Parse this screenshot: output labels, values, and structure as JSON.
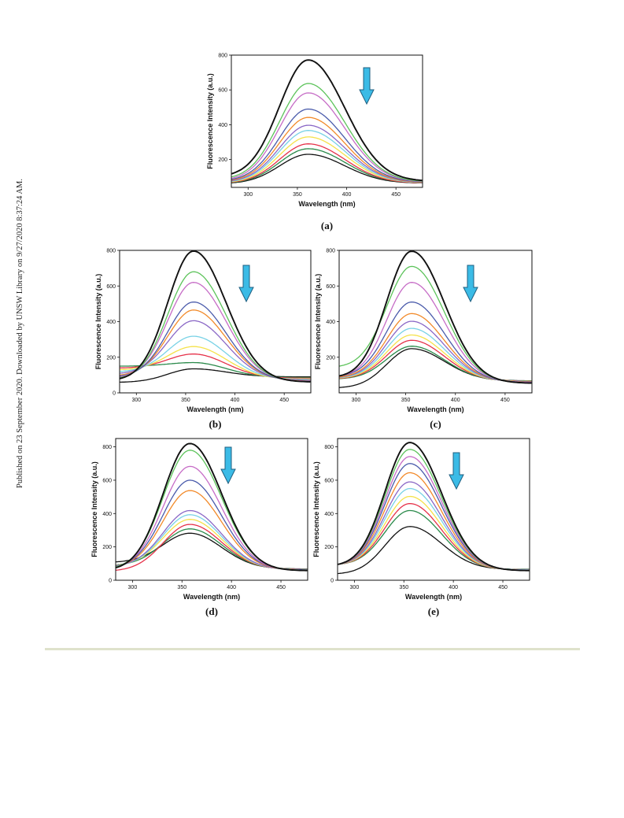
{
  "side_note": "Published on 23 September 2020. Downloaded by UNSW Library on 9/27/2020 8:37:24 AM.",
  "colors": {
    "arrow": "#3bbbe6",
    "series": [
      "#111111",
      "#5cc35a",
      "#c66cc6",
      "#4a5bab",
      "#f28a2a",
      "#8a67c6",
      "#78d2e6",
      "#f5e24a",
      "#e6324a",
      "#2a8a4a"
    ]
  },
  "chart_data": [
    {
      "type": "line",
      "panel": "(a)",
      "xlabel": "Wavelength (nm)",
      "ylabel": "Fluorescence Intensity (a.u.)",
      "xlim": [
        283,
        477
      ],
      "ylim": [
        40,
        800
      ],
      "xticks": [
        300,
        350,
        400,
        450
      ],
      "yticks": [
        200,
        400,
        600,
        800
      ],
      "peak_x": 361,
      "sigma_left": 29,
      "sigma_right": 37,
      "start_x": 283,
      "end_x": 477,
      "series": [
        {
          "values": {
            "start": 118,
            "peak": 772,
            "end": 80
          }
        },
        {
          "values": {
            "start": 100,
            "peak": 637,
            "end": 76
          }
        },
        {
          "values": {
            "start": 92,
            "peak": 583,
            "end": 74
          }
        },
        {
          "values": {
            "start": 86,
            "peak": 490,
            "end": 72
          }
        },
        {
          "values": {
            "start": 82,
            "peak": 442,
            "end": 70
          }
        },
        {
          "values": {
            "start": 78,
            "peak": 397,
            "end": 70
          }
        },
        {
          "values": {
            "start": 75,
            "peak": 367,
            "end": 68
          }
        },
        {
          "values": {
            "start": 72,
            "peak": 330,
            "end": 68
          }
        },
        {
          "values": {
            "start": 70,
            "peak": 290,
            "end": 66
          }
        },
        {
          "values": {
            "start": 68,
            "peak": 262,
            "end": 66
          }
        },
        {
          "values": {
            "start": 66,
            "peak": 230,
            "end": 65
          }
        }
      ]
    },
    {
      "type": "line",
      "panel": "(b)",
      "xlabel": "Wavelength (nm)",
      "ylabel": "Fluorescence Intensity (a.u.)",
      "xlim": [
        283,
        477
      ],
      "ylim": [
        0,
        800
      ],
      "xticks": [
        300,
        350,
        400,
        450
      ],
      "yticks": [
        0,
        200,
        400,
        600,
        800
      ],
      "peak_x": 358,
      "sigma_left": 26,
      "sigma_right": 33,
      "start_x": 283,
      "end_x": 477,
      "series": [
        {
          "values": {
            "start": 80,
            "peak": 796,
            "end": 62
          }
        },
        {
          "values": {
            "start": 85,
            "peak": 680,
            "end": 64
          }
        },
        {
          "values": {
            "start": 90,
            "peak": 620,
            "end": 66
          }
        },
        {
          "values": {
            "start": 95,
            "peak": 510,
            "end": 68
          }
        },
        {
          "values": {
            "start": 100,
            "peak": 465,
            "end": 70
          }
        },
        {
          "values": {
            "start": 110,
            "peak": 405,
            "end": 72
          }
        },
        {
          "values": {
            "start": 120,
            "peak": 318,
            "end": 76
          }
        },
        {
          "values": {
            "start": 130,
            "peak": 260,
            "end": 78
          }
        },
        {
          "values": {
            "start": 140,
            "peak": 218,
            "end": 82
          }
        },
        {
          "values": {
            "start": 150,
            "peak": 170,
            "end": 86
          }
        },
        {
          "values": {
            "start": 60,
            "peak": 135,
            "end": 90
          }
        }
      ]
    },
    {
      "type": "line",
      "panel": "(c)",
      "xlabel": "Wavelength (nm)",
      "ylabel": "Fluorescence Intensity (a.u.)",
      "xlim": [
        283,
        477
      ],
      "ylim": [
        0,
        800
      ],
      "xticks": [
        300,
        350,
        400,
        450
      ],
      "yticks": [
        200,
        400,
        600,
        800
      ],
      "peak_x": 356,
      "sigma_left": 25,
      "sigma_right": 33,
      "start_x": 283,
      "end_x": 477,
      "series": [
        {
          "values": {
            "start": 95,
            "peak": 795,
            "end": 55
          }
        },
        {
          "values": {
            "start": 150,
            "peak": 710,
            "end": 56
          }
        },
        {
          "values": {
            "start": 95,
            "peak": 620,
            "end": 58
          }
        },
        {
          "values": {
            "start": 95,
            "peak": 510,
            "end": 60
          }
        },
        {
          "values": {
            "start": 90,
            "peak": 445,
            "end": 62
          }
        },
        {
          "values": {
            "start": 88,
            "peak": 402,
            "end": 63
          }
        },
        {
          "values": {
            "start": 86,
            "peak": 362,
            "end": 64
          }
        },
        {
          "values": {
            "start": 84,
            "peak": 325,
            "end": 65
          }
        },
        {
          "values": {
            "start": 82,
            "peak": 295,
            "end": 66
          }
        },
        {
          "values": {
            "start": 80,
            "peak": 262,
            "end": 67
          }
        },
        {
          "values": {
            "start": 30,
            "peak": 248,
            "end": 68
          }
        }
      ]
    },
    {
      "type": "line",
      "panel": "(d)",
      "xlabel": "Wavelength (nm)",
      "ylabel": "Fluorescence Intensity (a.u.)",
      "xlim": [
        283,
        477
      ],
      "ylim": [
        0,
        850
      ],
      "xticks": [
        300,
        350,
        400,
        450
      ],
      "yticks": [
        0,
        200,
        400,
        600,
        800
      ],
      "peak_x": 358,
      "sigma_left": 27,
      "sigma_right": 32,
      "start_x": 283,
      "end_x": 477,
      "series": [
        {
          "values": {
            "start": 75,
            "peak": 820,
            "end": 58
          }
        },
        {
          "values": {
            "start": 80,
            "peak": 780,
            "end": 60
          }
        },
        {
          "values": {
            "start": 82,
            "peak": 683,
            "end": 60
          }
        },
        {
          "values": {
            "start": 85,
            "peak": 600,
            "end": 62
          }
        },
        {
          "values": {
            "start": 85,
            "peak": 538,
            "end": 62
          }
        },
        {
          "values": {
            "start": 88,
            "peak": 418,
            "end": 64
          }
        },
        {
          "values": {
            "start": 88,
            "peak": 393,
            "end": 64
          }
        },
        {
          "values": {
            "start": 90,
            "peak": 365,
            "end": 65
          }
        },
        {
          "values": {
            "start": 60,
            "peak": 335,
            "end": 66
          }
        },
        {
          "values": {
            "start": 92,
            "peak": 308,
            "end": 67
          }
        },
        {
          "values": {
            "start": 110,
            "peak": 282,
            "end": 68
          }
        }
      ]
    },
    {
      "type": "line",
      "panel": "(e)",
      "xlabel": "Wavelength (nm)",
      "ylabel": "Fluorescence Intensity (a.u.)",
      "xlim": [
        283,
        477
      ],
      "ylim": [
        0,
        850
      ],
      "xticks": [
        300,
        350,
        400,
        450
      ],
      "yticks": [
        0,
        200,
        400,
        600,
        800
      ],
      "peak_x": 356,
      "sigma_left": 25,
      "sigma_right": 32,
      "start_x": 283,
      "end_x": 477,
      "series": [
        {
          "values": {
            "start": 95,
            "peak": 826,
            "end": 58
          }
        },
        {
          "values": {
            "start": 95,
            "peak": 785,
            "end": 58
          }
        },
        {
          "values": {
            "start": 95,
            "peak": 742,
            "end": 59
          }
        },
        {
          "values": {
            "start": 95,
            "peak": 700,
            "end": 60
          }
        },
        {
          "values": {
            "start": 95,
            "peak": 645,
            "end": 60
          }
        },
        {
          "values": {
            "start": 95,
            "peak": 590,
            "end": 61
          }
        },
        {
          "values": {
            "start": 95,
            "peak": 550,
            "end": 62
          }
        },
        {
          "values": {
            "start": 95,
            "peak": 503,
            "end": 62
          }
        },
        {
          "values": {
            "start": 95,
            "peak": 460,
            "end": 63
          }
        },
        {
          "values": {
            "start": 95,
            "peak": 418,
            "end": 64
          }
        },
        {
          "values": {
            "start": 40,
            "peak": 322,
            "end": 65
          }
        }
      ]
    }
  ]
}
